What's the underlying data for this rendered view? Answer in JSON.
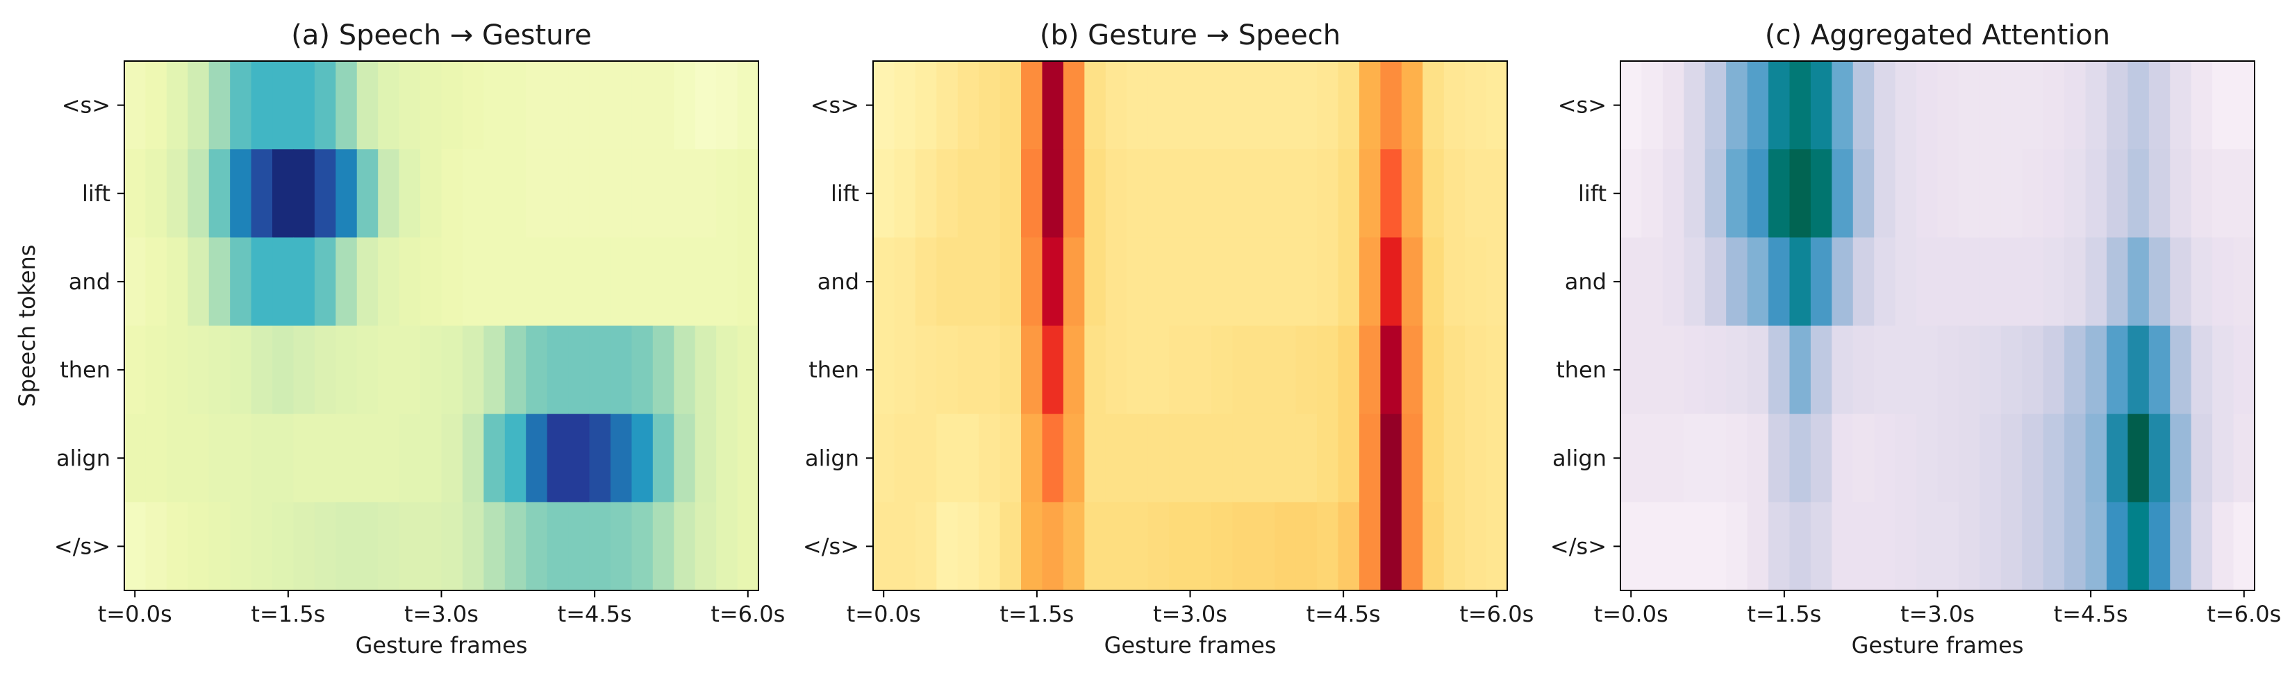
{
  "chart_data": [
    {
      "type": "heatmap",
      "title": "(a) Speech → Gesture",
      "xlabel": "Gesture frames",
      "ylabel": "Speech tokens",
      "colormap": "YlGnBu",
      "rows": [
        "<s>",
        "lift",
        "and",
        "then",
        "align",
        "</s>"
      ],
      "xtick_labels": [
        "t=0.0s",
        "t=1.5s",
        "t=3.0s",
        "t=4.5s",
        "t=6.0s"
      ],
      "xtick_frames": [
        0,
        7.5,
        15,
        22.5,
        30
      ],
      "n_frames": 30,
      "values": [
        [
          0.1,
          0.12,
          0.16,
          0.22,
          0.32,
          0.45,
          0.5,
          0.5,
          0.5,
          0.45,
          0.34,
          0.22,
          0.17,
          0.15,
          0.14,
          0.13,
          0.12,
          0.11,
          0.11,
          0.1,
          0.1,
          0.1,
          0.1,
          0.1,
          0.1,
          0.1,
          0.08,
          0.06,
          0.07,
          0.09
        ],
        [
          0.12,
          0.14,
          0.18,
          0.26,
          0.42,
          0.66,
          0.8,
          0.93,
          0.93,
          0.8,
          0.66,
          0.4,
          0.24,
          0.17,
          0.14,
          0.12,
          0.11,
          0.11,
          0.11,
          0.1,
          0.1,
          0.1,
          0.1,
          0.1,
          0.1,
          0.1,
          0.1,
          0.1,
          0.11,
          0.12
        ],
        [
          0.1,
          0.12,
          0.14,
          0.2,
          0.3,
          0.42,
          0.5,
          0.5,
          0.5,
          0.43,
          0.3,
          0.2,
          0.16,
          0.14,
          0.13,
          0.12,
          0.11,
          0.11,
          0.11,
          0.11,
          0.11,
          0.11,
          0.11,
          0.11,
          0.11,
          0.11,
          0.11,
          0.11,
          0.11,
          0.12
        ],
        [
          0.12,
          0.13,
          0.14,
          0.15,
          0.16,
          0.17,
          0.2,
          0.22,
          0.2,
          0.18,
          0.17,
          0.16,
          0.15,
          0.15,
          0.16,
          0.17,
          0.2,
          0.26,
          0.33,
          0.38,
          0.4,
          0.4,
          0.4,
          0.4,
          0.38,
          0.33,
          0.26,
          0.2,
          0.16,
          0.14
        ],
        [
          0.13,
          0.13,
          0.14,
          0.14,
          0.15,
          0.15,
          0.16,
          0.16,
          0.15,
          0.15,
          0.15,
          0.15,
          0.15,
          0.16,
          0.16,
          0.18,
          0.25,
          0.42,
          0.5,
          0.7,
          0.85,
          0.85,
          0.8,
          0.7,
          0.6,
          0.4,
          0.28,
          0.2,
          0.16,
          0.14
        ],
        [
          0.08,
          0.1,
          0.12,
          0.13,
          0.14,
          0.15,
          0.16,
          0.17,
          0.18,
          0.19,
          0.2,
          0.2,
          0.19,
          0.18,
          0.18,
          0.19,
          0.23,
          0.28,
          0.32,
          0.36,
          0.38,
          0.38,
          0.38,
          0.37,
          0.35,
          0.3,
          0.24,
          0.19,
          0.16,
          0.14
        ]
      ]
    },
    {
      "type": "heatmap",
      "title": "(b) Gesture → Speech",
      "xlabel": "Gesture frames",
      "ylabel": "",
      "colormap": "YlOrRd",
      "rows": [
        "<s>",
        "lift",
        "and",
        "then",
        "align",
        "</s>"
      ],
      "xtick_labels": [
        "t=0.0s",
        "t=1.5s",
        "t=3.0s",
        "t=4.5s",
        "t=6.0s"
      ],
      "xtick_frames": [
        0,
        7.5,
        15,
        22.5,
        30
      ],
      "n_frames": 30,
      "values": [
        [
          0.08,
          0.1,
          0.12,
          0.15,
          0.18,
          0.2,
          0.22,
          0.5,
          0.92,
          0.5,
          0.2,
          0.16,
          0.15,
          0.15,
          0.15,
          0.15,
          0.15,
          0.15,
          0.15,
          0.15,
          0.15,
          0.16,
          0.2,
          0.38,
          0.5,
          0.38,
          0.2,
          0.16,
          0.15,
          0.14
        ],
        [
          0.1,
          0.12,
          0.15,
          0.18,
          0.2,
          0.2,
          0.22,
          0.52,
          0.92,
          0.5,
          0.22,
          0.18,
          0.17,
          0.17,
          0.17,
          0.17,
          0.17,
          0.17,
          0.17,
          0.17,
          0.17,
          0.18,
          0.22,
          0.4,
          0.6,
          0.4,
          0.22,
          0.18,
          0.16,
          0.16
        ],
        [
          0.14,
          0.15,
          0.18,
          0.2,
          0.2,
          0.2,
          0.22,
          0.5,
          0.85,
          0.45,
          0.22,
          0.18,
          0.17,
          0.17,
          0.17,
          0.17,
          0.17,
          0.17,
          0.17,
          0.17,
          0.17,
          0.18,
          0.22,
          0.43,
          0.74,
          0.45,
          0.24,
          0.18,
          0.17,
          0.16
        ],
        [
          0.14,
          0.15,
          0.16,
          0.17,
          0.18,
          0.18,
          0.2,
          0.46,
          0.7,
          0.42,
          0.2,
          0.18,
          0.17,
          0.17,
          0.18,
          0.18,
          0.19,
          0.2,
          0.2,
          0.2,
          0.21,
          0.22,
          0.26,
          0.48,
          0.9,
          0.48,
          0.25,
          0.2,
          0.18,
          0.17
        ],
        [
          0.15,
          0.16,
          0.16,
          0.14,
          0.14,
          0.16,
          0.18,
          0.4,
          0.55,
          0.4,
          0.2,
          0.2,
          0.2,
          0.2,
          0.2,
          0.2,
          0.2,
          0.2,
          0.2,
          0.2,
          0.2,
          0.22,
          0.26,
          0.5,
          0.96,
          0.5,
          0.25,
          0.2,
          0.18,
          0.17
        ],
        [
          0.16,
          0.16,
          0.15,
          0.1,
          0.11,
          0.14,
          0.2,
          0.38,
          0.42,
          0.35,
          0.22,
          0.22,
          0.22,
          0.23,
          0.24,
          0.24,
          0.25,
          0.26,
          0.26,
          0.27,
          0.27,
          0.26,
          0.3,
          0.5,
          0.96,
          0.5,
          0.26,
          0.2,
          0.18,
          0.17
        ]
      ]
    },
    {
      "type": "heatmap",
      "title": "(c) Aggregated Attention",
      "xlabel": "Gesture frames",
      "ylabel": "",
      "colormap": "PuBuGn",
      "rows": [
        "<s>",
        "lift",
        "and",
        "then",
        "align",
        "</s>"
      ],
      "xtick_labels": [
        "t=0.0s",
        "t=1.5s",
        "t=3.0s",
        "t=4.5s",
        "t=6.0s"
      ],
      "xtick_frames": [
        0,
        7.5,
        15,
        22.5,
        30
      ],
      "n_frames": 30,
      "values": [
        [
          0.05,
          0.08,
          0.12,
          0.2,
          0.3,
          0.45,
          0.55,
          0.72,
          0.8,
          0.72,
          0.5,
          0.32,
          0.2,
          0.15,
          0.13,
          0.12,
          0.11,
          0.11,
          0.11,
          0.11,
          0.12,
          0.14,
          0.18,
          0.25,
          0.3,
          0.24,
          0.15,
          0.1,
          0.06,
          0.06
        ],
        [
          0.08,
          0.1,
          0.14,
          0.2,
          0.32,
          0.5,
          0.6,
          0.82,
          0.9,
          0.82,
          0.55,
          0.35,
          0.2,
          0.15,
          0.13,
          0.12,
          0.11,
          0.11,
          0.11,
          0.12,
          0.13,
          0.15,
          0.19,
          0.26,
          0.32,
          0.25,
          0.16,
          0.12,
          0.1,
          0.1
        ],
        [
          0.12,
          0.12,
          0.14,
          0.18,
          0.26,
          0.38,
          0.45,
          0.6,
          0.72,
          0.58,
          0.38,
          0.25,
          0.18,
          0.15,
          0.14,
          0.14,
          0.14,
          0.14,
          0.14,
          0.14,
          0.15,
          0.17,
          0.23,
          0.34,
          0.45,
          0.34,
          0.22,
          0.15,
          0.13,
          0.12
        ],
        [
          0.12,
          0.12,
          0.12,
          0.13,
          0.14,
          0.15,
          0.17,
          0.3,
          0.45,
          0.3,
          0.18,
          0.16,
          0.15,
          0.15,
          0.15,
          0.16,
          0.17,
          0.18,
          0.2,
          0.22,
          0.26,
          0.33,
          0.4,
          0.55,
          0.68,
          0.55,
          0.34,
          0.2,
          0.15,
          0.13
        ],
        [
          0.1,
          0.1,
          0.1,
          0.09,
          0.09,
          0.1,
          0.12,
          0.25,
          0.3,
          0.25,
          0.13,
          0.12,
          0.13,
          0.14,
          0.15,
          0.16,
          0.17,
          0.19,
          0.22,
          0.26,
          0.3,
          0.36,
          0.43,
          0.68,
          0.92,
          0.68,
          0.4,
          0.22,
          0.15,
          0.12
        ],
        [
          0.06,
          0.06,
          0.06,
          0.06,
          0.06,
          0.08,
          0.12,
          0.2,
          0.24,
          0.2,
          0.13,
          0.13,
          0.13,
          0.14,
          0.15,
          0.15,
          0.17,
          0.19,
          0.22,
          0.26,
          0.3,
          0.36,
          0.42,
          0.62,
          0.75,
          0.62,
          0.38,
          0.2,
          0.1,
          0.06
        ]
      ]
    }
  ]
}
